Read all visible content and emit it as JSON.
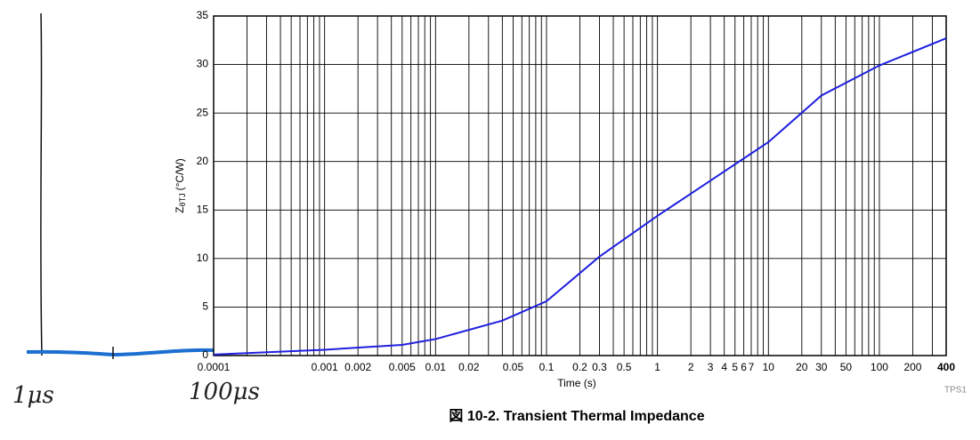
{
  "chart_data": {
    "type": "line",
    "xlabel": "Time (s)",
    "ylabel": {
      "main": "Z",
      "sub": "θTJ",
      "unit": "(°C/W)"
    },
    "caption": "図 10-2. Transient Thermal Impedance",
    "watermark": "TPS1",
    "annotations": [
      "1μs",
      "100μs"
    ],
    "x": [
      0.0001,
      0.001,
      0.005,
      0.01,
      0.04,
      0.1,
      0.3,
      1,
      10,
      30,
      100,
      400
    ],
    "values": [
      0.1,
      0.6,
      1.1,
      1.7,
      3.6,
      5.6,
      10.2,
      14.4,
      22,
      26.8,
      29.9,
      32.7
    ],
    "color": "#1f1fe0",
    "xscale": "log",
    "xlim": [
      0.0001,
      400
    ],
    "ylim": [
      0,
      35
    ],
    "xticks": [
      0.0001,
      0.001,
      0.002,
      0.005,
      0.01,
      0.02,
      0.05,
      0.1,
      0.2,
      0.3,
      0.5,
      1,
      2,
      3,
      4,
      5,
      6,
      7,
      10,
      20,
      30,
      50,
      100,
      200,
      400
    ],
    "yticks": [
      0,
      5,
      10,
      15,
      20,
      25,
      30,
      35
    ],
    "x_minor_grid": [
      0.0002,
      0.0003,
      0.0004,
      0.0005,
      0.0006,
      0.0007,
      0.0008,
      0.0009,
      0.003,
      0.004,
      0.006,
      0.007,
      0.008,
      0.009,
      0.03,
      0.04,
      0.06,
      0.07,
      0.08,
      0.09,
      0.4,
      0.6,
      0.7,
      0.8,
      0.9,
      8,
      9,
      40,
      60,
      70,
      80,
      90,
      300
    ],
    "grid": true
  }
}
